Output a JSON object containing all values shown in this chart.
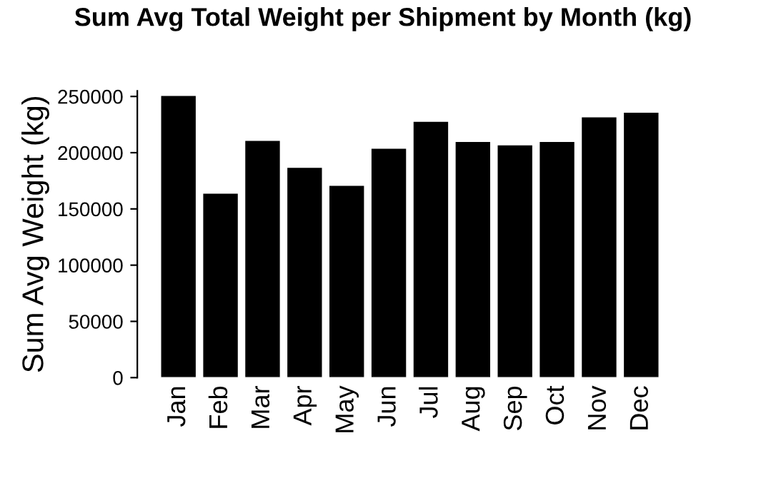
{
  "chart_data": {
    "type": "bar",
    "title": "Sum Avg Total Weight per Shipment by Month (kg)",
    "ylabel": "Sum Avg Weight (kg)",
    "categories": [
      "Jan",
      "Feb",
      "Mar",
      "Apr",
      "May",
      "Jun",
      "Jul",
      "Aug",
      "Sep",
      "Oct",
      "Nov",
      "Dec"
    ],
    "values": [
      251000,
      164000,
      211000,
      187000,
      171000,
      204000,
      228000,
      210000,
      207000,
      210000,
      232000,
      236000
    ],
    "color": "#000000",
    "ylim": [
      0,
      255000
    ],
    "yticks": [
      0,
      50000,
      100000,
      150000,
      200000,
      250000
    ],
    "grid": false
  }
}
